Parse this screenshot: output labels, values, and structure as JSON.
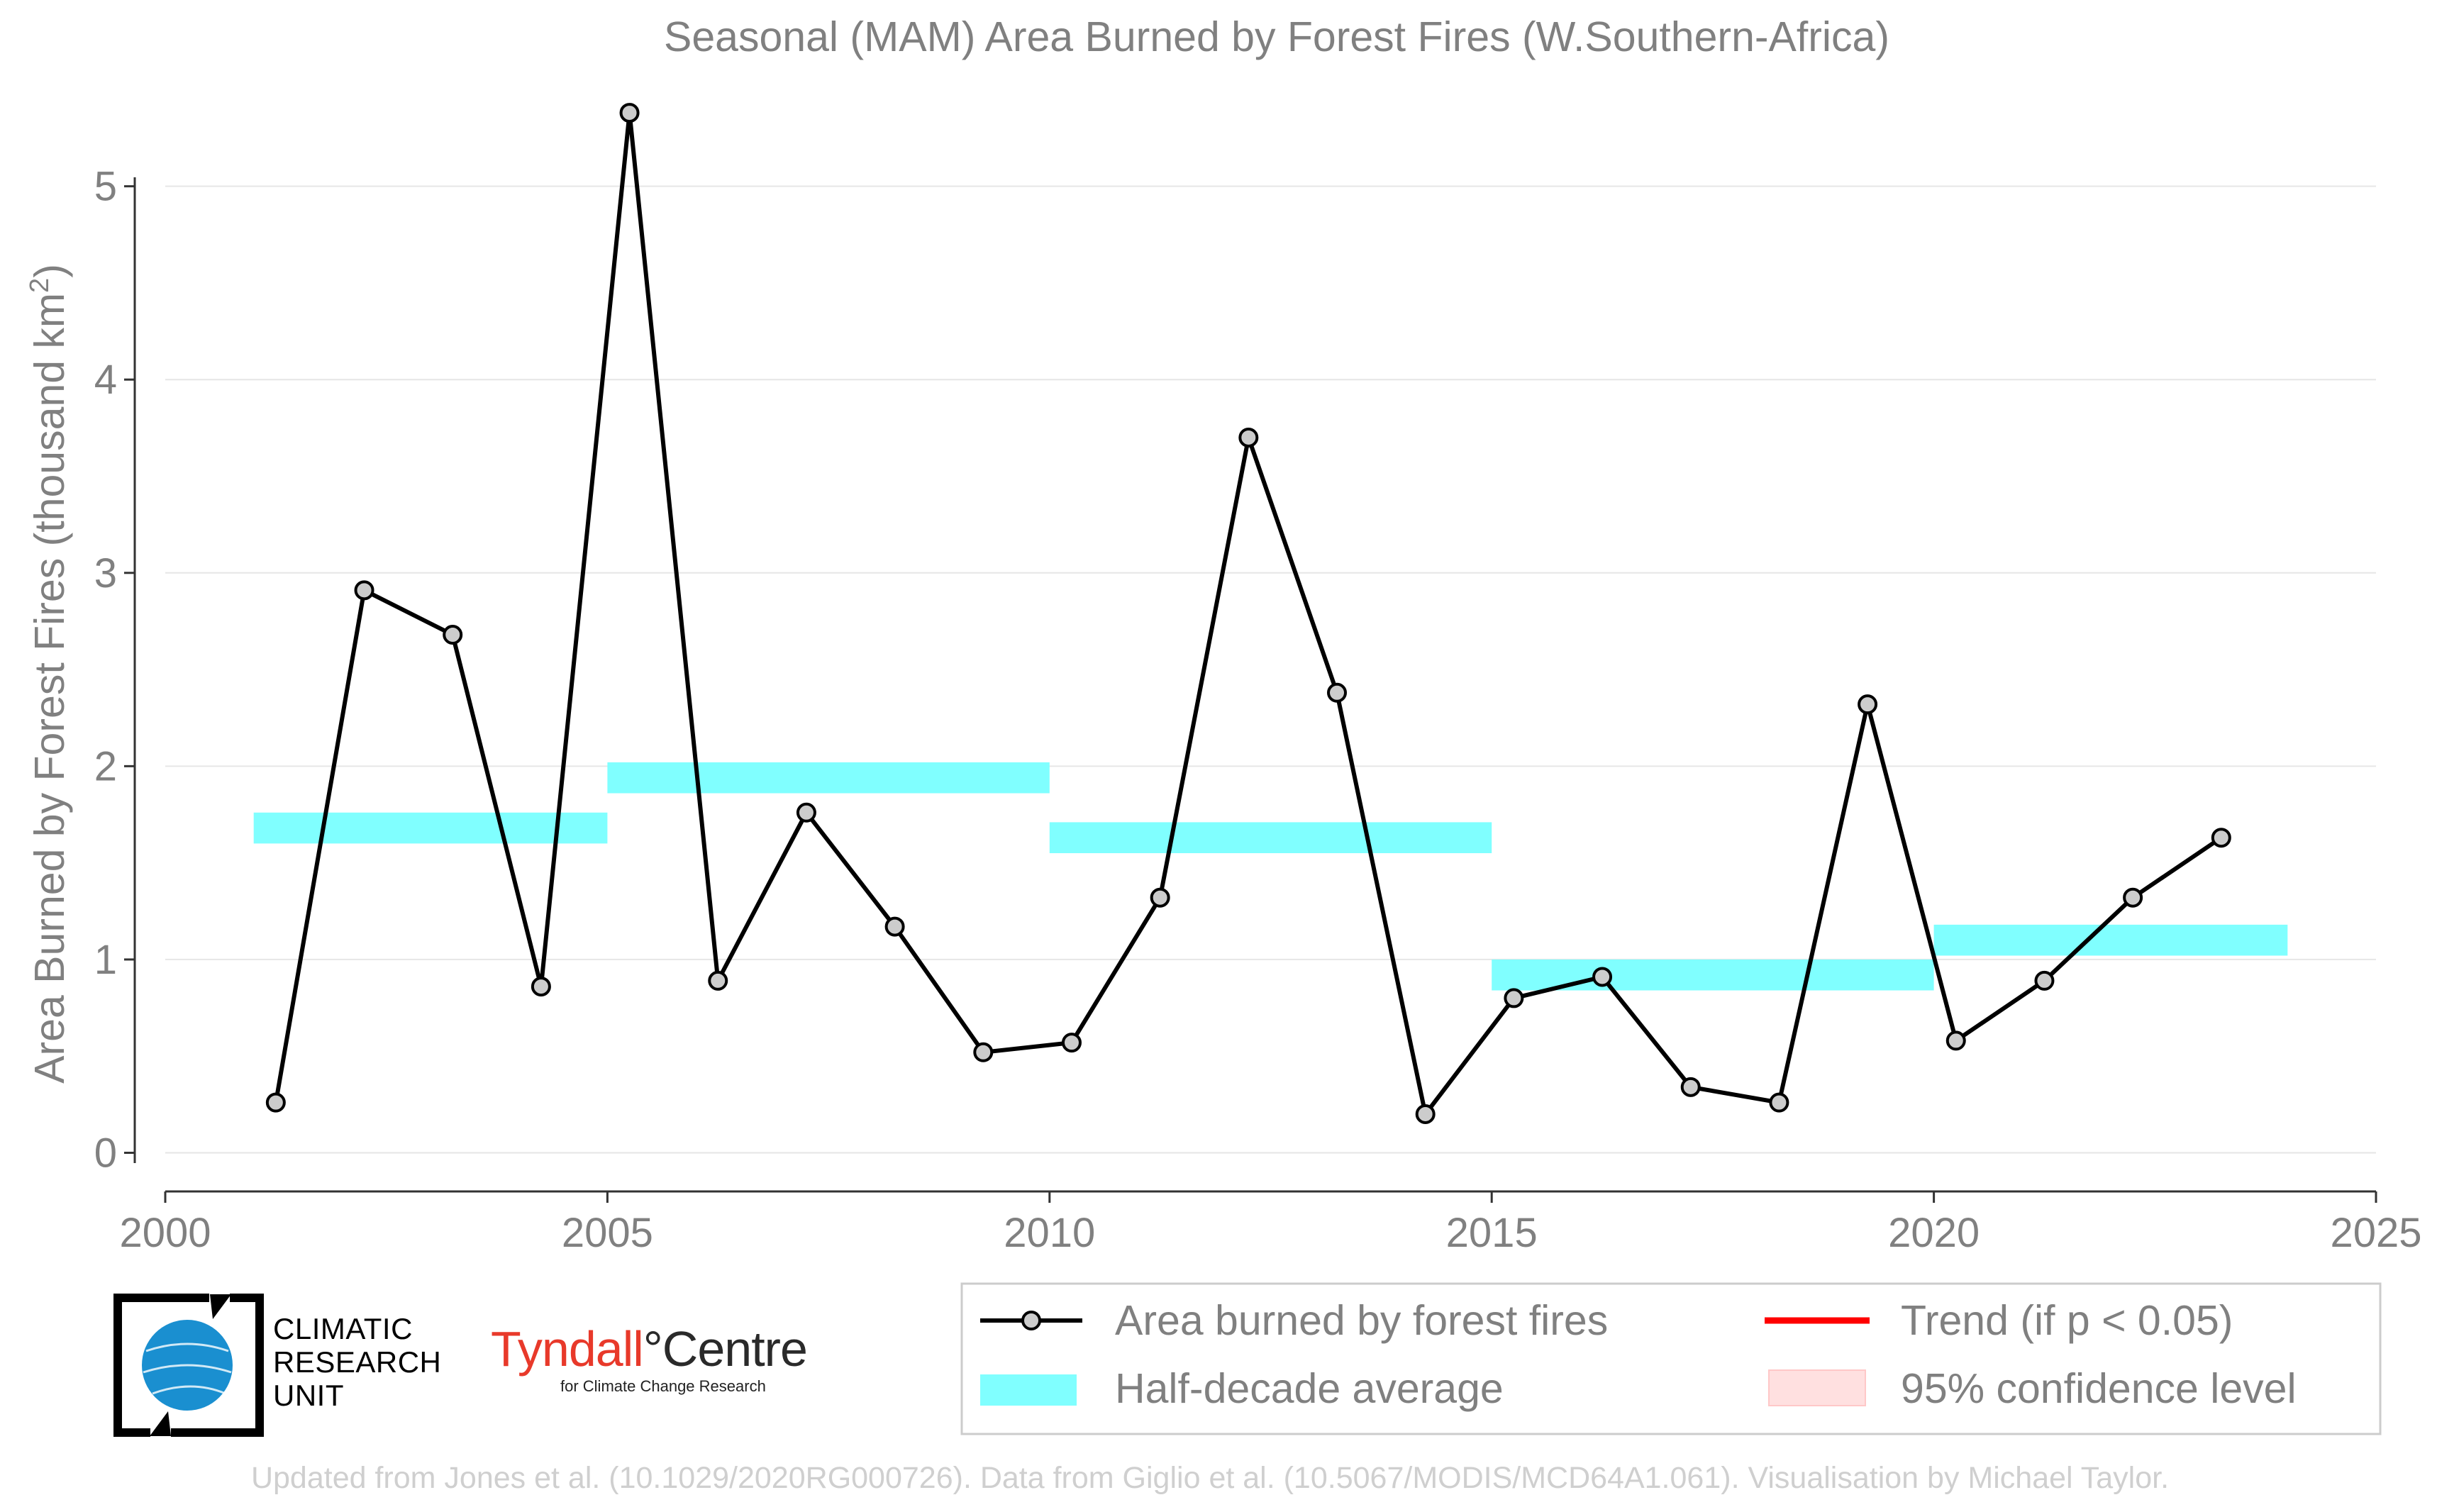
{
  "chart_data": {
    "type": "line",
    "title": "Seasonal (MAM) Area Burned by Forest Fires (W.Southern-Africa)",
    "ylabel": "Area Burned by Forest Fires (thousand km",
    "ylabel_sup": "2",
    "ylabel_close": ")",
    "xlim": [
      2000,
      2025
    ],
    "ylim": [
      -0.2,
      5.45
    ],
    "x_ticks": [
      2000,
      2005,
      2010,
      2015,
      2020,
      2025
    ],
    "y_ticks": [
      0,
      1,
      2,
      3,
      4,
      5
    ],
    "grid": "horizontal",
    "series": [
      {
        "name": "Area burned by forest fires",
        "color": "#000000",
        "marker_fill": "#cccccc",
        "x": [
          2001.25,
          2002.25,
          2003.25,
          2004.25,
          2005.25,
          2006.25,
          2007.25,
          2008.25,
          2009.25,
          2010.25,
          2011.25,
          2012.25,
          2013.25,
          2014.25,
          2015.25,
          2016.25,
          2017.25,
          2018.25,
          2019.25,
          2020.25,
          2021.25,
          2022.25,
          2023.25
        ],
        "y": [
          0.26,
          2.91,
          2.68,
          0.86,
          5.38,
          0.89,
          1.76,
          1.17,
          0.52,
          0.57,
          1.32,
          3.7,
          2.38,
          0.2,
          0.8,
          0.91,
          0.34,
          0.26,
          2.32,
          0.58,
          0.89,
          1.32,
          1.63
        ]
      }
    ],
    "half_decade_average": {
      "name": "Half-decade average",
      "color": "#80ffff",
      "segments": [
        {
          "x0": 2001,
          "x1": 2005,
          "y": 1.68
        },
        {
          "x0": 2005,
          "x1": 2010,
          "y": 1.94
        },
        {
          "x0": 2010,
          "x1": 2015,
          "y": 1.63
        },
        {
          "x0": 2015,
          "x1": 2020,
          "y": 0.92
        },
        {
          "x0": 2020,
          "x1": 2024,
          "y": 1.1
        }
      ]
    },
    "legend": {
      "placement": "bottom-right",
      "items": [
        {
          "label": "Area burned by forest fires",
          "kind": "line-marker",
          "color": "#000000"
        },
        {
          "label": "Trend (if p < 0.05)",
          "kind": "line",
          "color": "#ff0000"
        },
        {
          "label": "Half-decade average",
          "kind": "band",
          "color": "#80ffff"
        },
        {
          "label": "95% confidence level",
          "kind": "band",
          "color": "#ffe0e0"
        }
      ]
    },
    "credit": "Updated from Jones et al. (10.1029/2020RG000726). Data from Giglio et al. (10.5067/MODIS/MCD64A1.061). Visualisation by Michael Taylor."
  },
  "logos": {
    "cru_lines": [
      "CLIMATIC",
      "RESEARCH",
      "UNIT"
    ],
    "tyndall_name": "Tyndall",
    "tyndall_degree": "°",
    "tyndall_centre": "Centre",
    "tyndall_sub": "for Climate Change Research"
  },
  "colors": {
    "text_gray": "#808080",
    "grid": "#e6e6e6",
    "axis": "#333333",
    "credit": "#cfcfcf"
  }
}
